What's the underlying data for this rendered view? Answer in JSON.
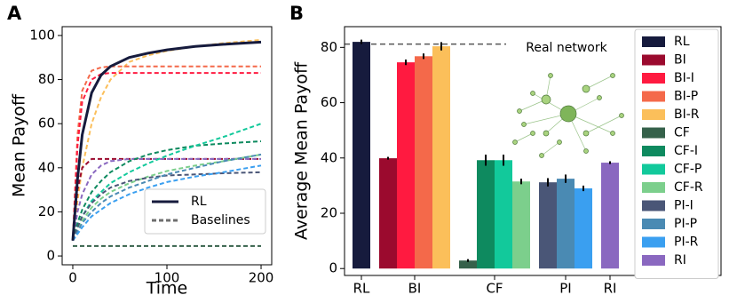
{
  "chart_data": [
    {
      "type": "line",
      "panel": "A",
      "xlabel": "Time",
      "ylabel": "Mean Payoff",
      "x": [
        0,
        5,
        10,
        20,
        30,
        40,
        60,
        80,
        100,
        130,
        160,
        200
      ],
      "xlim": [
        -11.3,
        211.3
      ],
      "ylim": [
        -4,
        104
      ],
      "xticks": [
        0,
        100,
        200
      ],
      "yticks": [
        0,
        20,
        40,
        60,
        80,
        100
      ],
      "series": [
        {
          "color": "#fbbf5a",
          "style": "dashed",
          "values": [
            7,
            25,
            40,
            60,
            72,
            80,
            88,
            91,
            93,
            95,
            96.5,
            98
          ]
        },
        {
          "color": "#f4694a",
          "style": "dashed",
          "values": [
            7,
            55,
            75,
            84,
            85.5,
            86,
            86,
            86,
            86,
            86,
            86,
            86
          ]
        },
        {
          "color": "#ff1a40",
          "style": "dashed",
          "values": [
            7,
            50,
            70,
            80,
            82.5,
            83,
            83,
            83,
            83,
            83,
            83,
            83
          ]
        },
        {
          "color": "#9b0a2e",
          "style": "dashed",
          "values": [
            7,
            30,
            40,
            44,
            44,
            44,
            44,
            44,
            44,
            44,
            44,
            44
          ]
        },
        {
          "color": "#8a68c0",
          "style": "dashed",
          "values": [
            7,
            20,
            28,
            37,
            41,
            43,
            44,
            44,
            44,
            44,
            44,
            44
          ]
        },
        {
          "color": "#35614a",
          "style": "dashed",
          "values": [
            4.5,
            4.5,
            4.5,
            4.5,
            4.5,
            4.5,
            4.5,
            4.5,
            4.5,
            4.5,
            4.5,
            4.5
          ]
        },
        {
          "color": "#0e8a5f",
          "style": "dashed",
          "values": [
            7,
            15,
            21,
            29,
            34,
            38,
            43,
            46,
            48,
            50,
            51,
            52
          ]
        },
        {
          "color": "#12c99b",
          "style": "dashed",
          "values": [
            7,
            13,
            18,
            25,
            29,
            33,
            38,
            42,
            45.5,
            50,
            54,
            60
          ]
        },
        {
          "color": "#7ccf8c",
          "style": "dashed",
          "values": [
            7,
            12,
            16,
            22,
            26,
            29,
            33,
            36,
            38.5,
            41,
            43,
            46
          ]
        },
        {
          "color": "#4a5677",
          "style": "dashed",
          "values": [
            7,
            13,
            18,
            24,
            28,
            31,
            34,
            35.5,
            36.5,
            37,
            37.5,
            38
          ]
        },
        {
          "color": "#4a8ab3",
          "style": "dashed",
          "values": [
            7,
            11,
            15,
            20,
            24,
            27,
            31,
            34,
            37,
            40,
            43,
            46
          ]
        },
        {
          "color": "#3a9ff0",
          "style": "dashed",
          "values": [
            7,
            10,
            13,
            18,
            21,
            24,
            28,
            31,
            33.5,
            36,
            38,
            41
          ]
        },
        {
          "color": "#161b3d",
          "style": "solid",
          "values": [
            7,
            35,
            55,
            74,
            82,
            86,
            90,
            92,
            93.5,
            95,
            96,
            97
          ]
        }
      ],
      "legend": [
        {
          "label": "RL",
          "color": "#161b3d",
          "style": "solid"
        },
        {
          "label": "Baselines",
          "color": "#6e6e6e",
          "style": "dashed"
        }
      ],
      "legend_position": "lower right"
    },
    {
      "type": "bar",
      "panel": "B",
      "ylabel": "Average Mean Payoff",
      "annotation": "Real network",
      "ylim": [
        -2.5,
        87.5
      ],
      "yticks": [
        0,
        20,
        40,
        60,
        80
      ],
      "reference_line": 81.2,
      "legend_position": "upper right",
      "groups": [
        {
          "label": "RL",
          "bars": [
            {
              "name": "RL",
              "color": "#161b3d",
              "value": 82,
              "error": 0.8
            }
          ]
        },
        {
          "label": "BI",
          "bars": [
            {
              "name": "BI",
              "color": "#9b0a2e",
              "value": 39.9,
              "error": 0.5
            },
            {
              "name": "BI-I",
              "color": "#ff1a40",
              "value": 74.6,
              "error": 1
            },
            {
              "name": "BI-P",
              "color": "#f4694a",
              "value": 76.8,
              "error": 1
            },
            {
              "name": "BI-R",
              "color": "#fbbf5a",
              "value": 80.4,
              "error": 1.5
            }
          ]
        },
        {
          "label": "CF",
          "bars": [
            {
              "name": "CF",
              "color": "#35614a",
              "value": 2.9,
              "error": 0.5
            },
            {
              "name": "CF-I",
              "color": "#0e8a5f",
              "value": 39.2,
              "error": 2
            },
            {
              "name": "CF-P",
              "color": "#12c99b",
              "value": 39.2,
              "error": 2
            },
            {
              "name": "CF-R",
              "color": "#7ccf8c",
              "value": 31.5,
              "error": 1
            }
          ]
        },
        {
          "label": "PI",
          "bars": [
            {
              "name": "PI-I",
              "color": "#4a5677",
              "value": 31.2,
              "error": 1.5
            },
            {
              "name": "PI-P",
              "color": "#4a8ab3",
              "value": 32.5,
              "error": 1.5
            },
            {
              "name": "PI-R",
              "color": "#3a9ff0",
              "value": 29,
              "error": 1
            }
          ]
        },
        {
          "label": "RI",
          "bars": [
            {
              "name": "RI",
              "color": "#8a68c0",
              "value": 38.3,
              "error": 0.5
            }
          ]
        }
      ]
    }
  ]
}
